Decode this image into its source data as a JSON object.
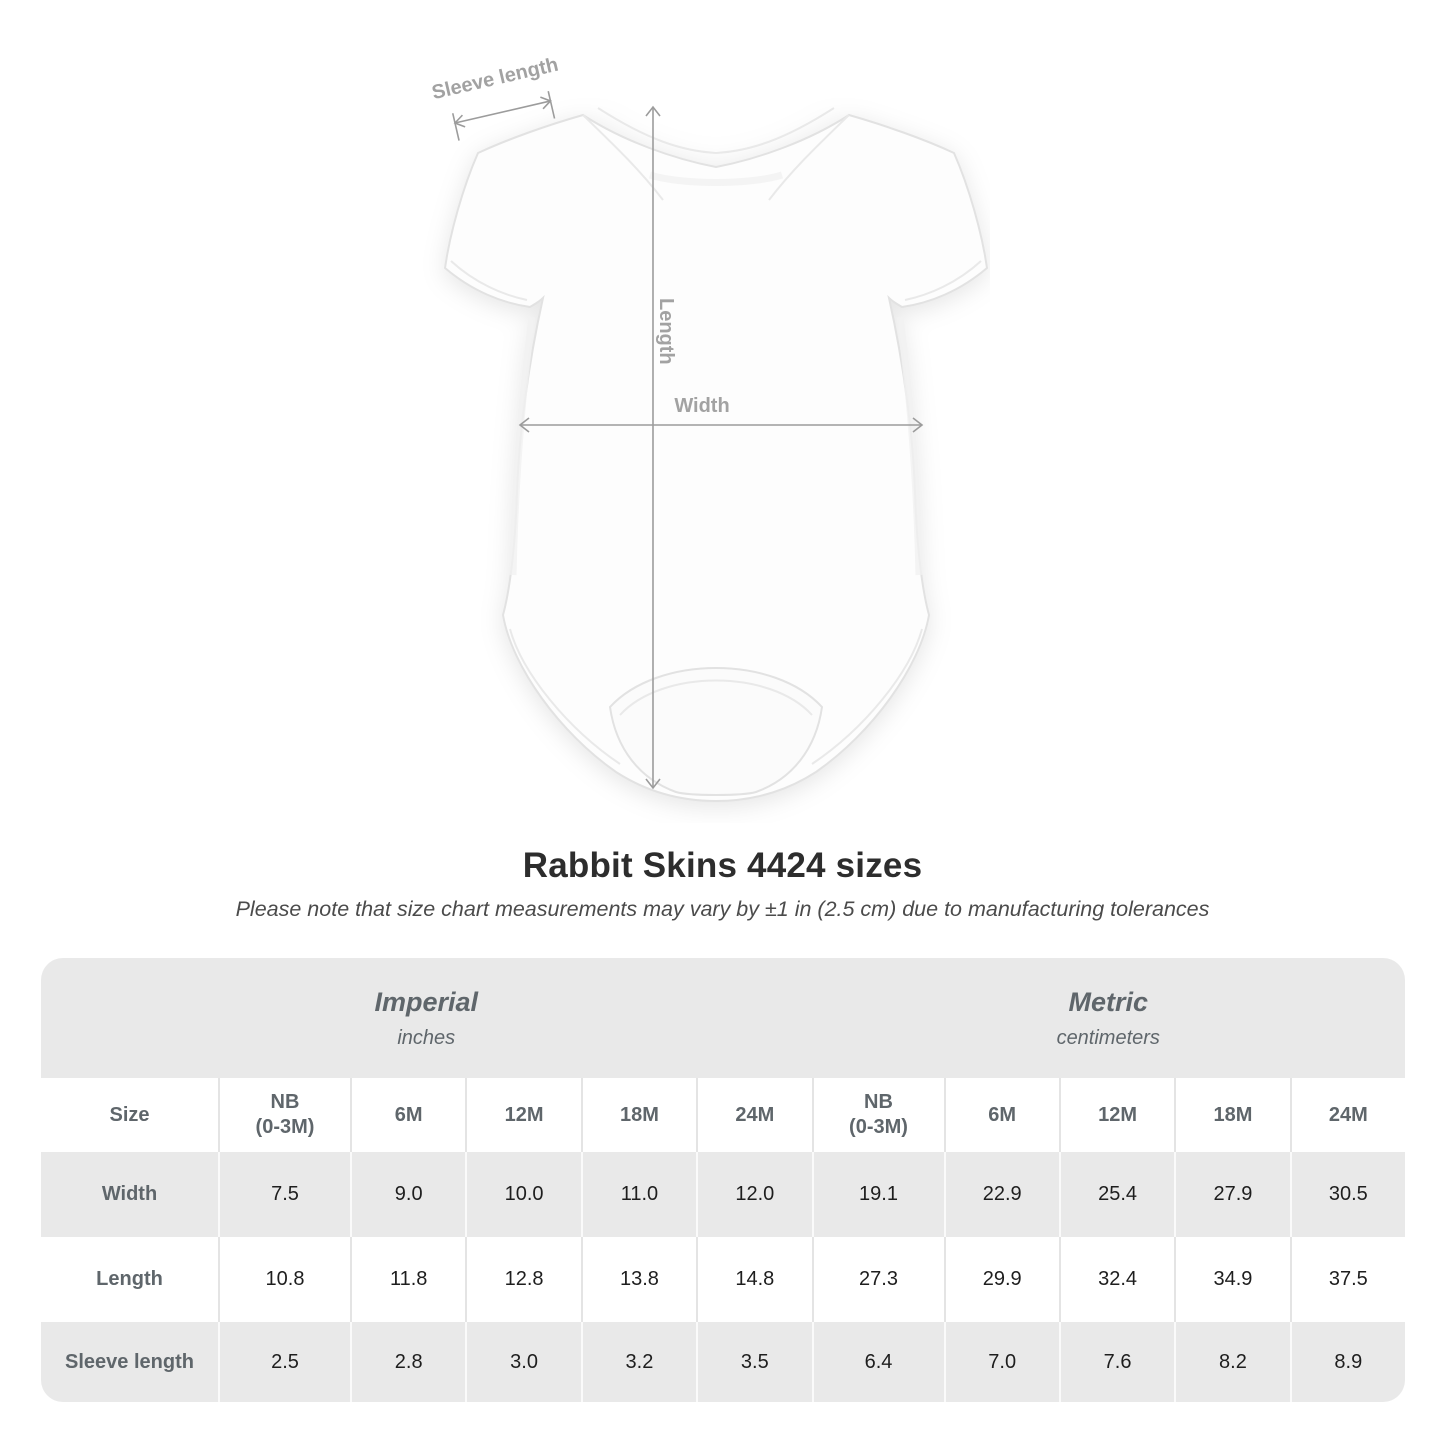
{
  "diagram": {
    "garment": "infant-bodysuit",
    "labels": {
      "sleeve_length": "Sleeve length",
      "length": "Length",
      "width": "Width"
    }
  },
  "chart_data": {
    "type": "table",
    "title": "Rabbit Skins 4424 sizes",
    "subtitle": "Please note that size chart measurements may vary by ±1 in (2.5 cm) due to manufacturing tolerances",
    "unit_groups": [
      {
        "label": "Imperial",
        "unit": "inches"
      },
      {
        "label": "Metric",
        "unit": "centimeters"
      }
    ],
    "size_column_header": "Size",
    "columns": [
      "NB\n(0-3M)",
      "6M",
      "12M",
      "18M",
      "24M",
      "NB\n(0-3M)",
      "6M",
      "12M",
      "18M",
      "24M"
    ],
    "rows": [
      {
        "label": "Width",
        "values": [
          "7.5",
          "9.0",
          "10.0",
          "11.0",
          "12.0",
          "19.1",
          "22.9",
          "25.4",
          "27.9",
          "30.5"
        ]
      },
      {
        "label": "Length",
        "values": [
          "10.8",
          "11.8",
          "12.8",
          "13.8",
          "14.8",
          "27.3",
          "29.9",
          "32.4",
          "34.9",
          "37.5"
        ]
      },
      {
        "label": "Sleeve length",
        "values": [
          "2.5",
          "2.8",
          "3.0",
          "3.2",
          "3.5",
          "6.4",
          "7.0",
          "7.6",
          "8.2",
          "8.9"
        ]
      }
    ]
  },
  "colors": {
    "table_stripe": "#e9e9e9",
    "header_text": "#5f666b",
    "value_text": "#1e1e1e",
    "title_text": "#2d2d2d",
    "annotation": "#a2a2a2"
  }
}
